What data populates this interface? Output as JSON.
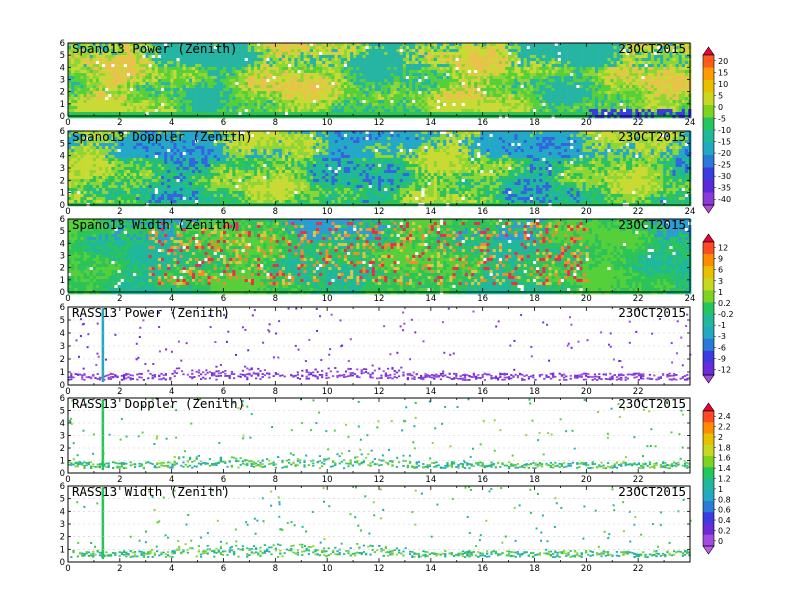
{
  "chart_data": [
    {
      "type": "heatmap",
      "title": "Spano13 Power (Zenith)",
      "date": "23OCT2015",
      "xlim": [
        0,
        24
      ],
      "ylim": [
        0,
        6
      ],
      "x_ticks": [
        "0",
        "2",
        "4",
        "6",
        "8",
        "10",
        "12",
        "14",
        "16",
        "18",
        "20",
        "22",
        "24"
      ],
      "y_ticks": [
        "0",
        "1",
        "2",
        "3",
        "4",
        "5",
        "6"
      ],
      "colorbar": "A"
    },
    {
      "type": "heatmap",
      "title": "Spano13 Doppler (Zenith)",
      "date": "23OCT2015",
      "xlim": [
        0,
        24
      ],
      "ylim": [
        0,
        6
      ],
      "x_ticks": [
        "0",
        "2",
        "4",
        "6",
        "8",
        "10",
        "12",
        "14",
        "16",
        "18",
        "20",
        "22",
        "24"
      ],
      "y_ticks": [
        "0",
        "1",
        "2",
        "3",
        "4",
        "5",
        "6"
      ],
      "colorbar": "A"
    },
    {
      "type": "heatmap",
      "title": "Spano13 Width (Zenith)",
      "date": "23OCT2015",
      "xlim": [
        0,
        24
      ],
      "ylim": [
        0,
        6
      ],
      "x_ticks": [
        "0",
        "2",
        "4",
        "6",
        "8",
        "10",
        "12",
        "14",
        "16",
        "18",
        "20",
        "22",
        "24"
      ],
      "y_ticks": [
        "0",
        "1",
        "2",
        "3",
        "4",
        "5",
        "6"
      ],
      "colorbar": "B"
    },
    {
      "type": "scatter",
      "title": "RASS13 Power (Zenith)",
      "date": "23OCT2015",
      "xlim": [
        0,
        24
      ],
      "ylim": [
        0,
        6
      ],
      "x_ticks": [
        "0",
        "2",
        "4",
        "6",
        "8",
        "10",
        "12",
        "14",
        "16",
        "18",
        "20",
        "22"
      ],
      "y_ticks": [
        "0",
        "1",
        "2",
        "3",
        "4",
        "5",
        "6"
      ],
      "colorbar": "B"
    },
    {
      "type": "scatter",
      "title": "RASS13 Doppler (Zenith)",
      "date": "23OCT2015",
      "xlim": [
        0,
        24
      ],
      "ylim": [
        0,
        6
      ],
      "x_ticks": [
        "0",
        "2",
        "4",
        "6",
        "8",
        "10",
        "12",
        "14",
        "16",
        "18",
        "20",
        "22"
      ],
      "y_ticks": [
        "0",
        "1",
        "2",
        "3",
        "4",
        "5",
        "6"
      ],
      "colorbar": "C"
    },
    {
      "type": "scatter",
      "title": "RASS13 Width (Zenith)",
      "date": "23OCT2015",
      "xlim": [
        0,
        24
      ],
      "ylim": [
        0,
        6
      ],
      "x_ticks": [
        "0",
        "2",
        "4",
        "6",
        "8",
        "10",
        "12",
        "14",
        "16",
        "18",
        "20",
        "22"
      ],
      "y_ticks": [
        "0",
        "1",
        "2",
        "3",
        "4",
        "5",
        "6"
      ],
      "colorbar": "C"
    }
  ],
  "colorbars": {
    "A": {
      "labels": [
        "20",
        "15",
        "10",
        "5",
        "0",
        "-5",
        "-10",
        "-15",
        "-20",
        "-25",
        "-30",
        "-35",
        "-40"
      ],
      "colors": [
        "#e8003e",
        "#ff5a1e",
        "#ff9a00",
        "#e8c000",
        "#c8d820",
        "#7ed321",
        "#22c55e",
        "#1fb89a",
        "#22a8c0",
        "#2a7ad8",
        "#3b3be0",
        "#5a2ad8",
        "#8a3ad8",
        "#b84ae0"
      ]
    },
    "B": {
      "labels": [
        "12",
        "9",
        "6",
        "3",
        "1",
        "0.2",
        "-0.2",
        "-1",
        "-3",
        "-6",
        "-9",
        "-12"
      ],
      "colors": [
        "#e8003e",
        "#ff4a22",
        "#ff8c00",
        "#e8c000",
        "#c8d820",
        "#7ed321",
        "#22c55e",
        "#1fb89a",
        "#22a8c0",
        "#2a7ad8",
        "#3b3be0",
        "#6a2ad8",
        "#a34ae0"
      ]
    },
    "C": {
      "labels": [
        "2.4",
        "2.2",
        "2",
        "1.8",
        "1.6",
        "1.4",
        "1.2",
        "1",
        "0.8",
        "0.6",
        "0.4",
        "0.2",
        "0"
      ],
      "colors": [
        "#e8003e",
        "#ff4a22",
        "#ff8c00",
        "#e8c000",
        "#c8d820",
        "#7ed321",
        "#22c55e",
        "#1fb89a",
        "#22a8c0",
        "#2a7ad8",
        "#3b3be0",
        "#6a2ad8",
        "#a34ae0",
        "#c25ae8"
      ]
    }
  }
}
